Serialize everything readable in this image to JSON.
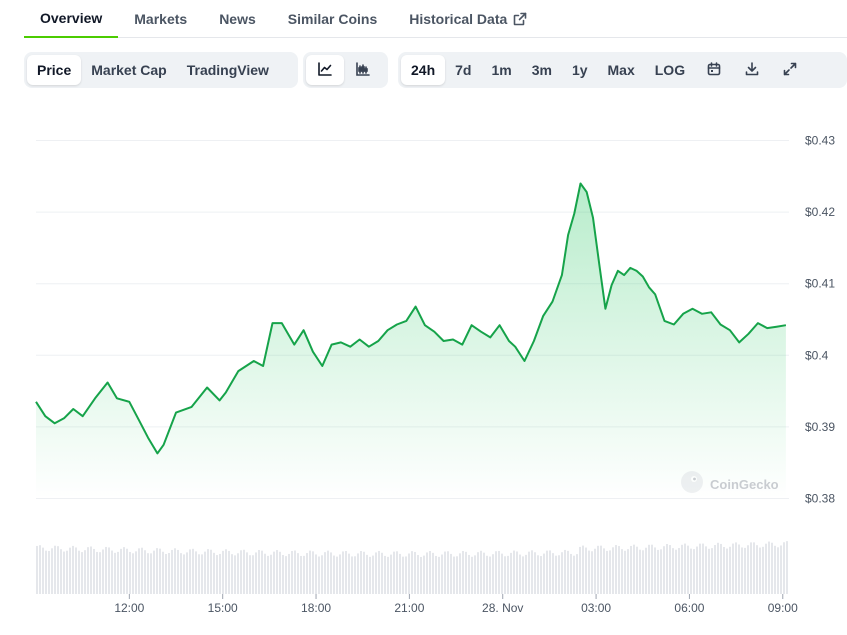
{
  "tabs": [
    "Overview",
    "Markets",
    "News",
    "Similar Coins",
    "Historical Data"
  ],
  "chart_type_toggle": [
    "Price",
    "Market Cap",
    "TradingView"
  ],
  "chart_style_icons": [
    "line-chart-icon",
    "candlestick-chart-icon"
  ],
  "range_buttons": [
    "24h",
    "7d",
    "1m",
    "3m",
    "1y",
    "Max",
    "LOG"
  ],
  "tool_icons": [
    "calendar-icon",
    "download-icon",
    "fullscreen-icon"
  ],
  "watermark": "CoinGecko",
  "colors": {
    "accent": "#4bcc00",
    "line": "#16a34a",
    "fill": "#22c55e"
  },
  "chart_data": {
    "type": "area",
    "y_axis": {
      "ticks": [
        "$0.43",
        "$0.42",
        "$0.41",
        "$0.4",
        "$0.39",
        "$0.38"
      ],
      "range": [
        0.38,
        0.43
      ]
    },
    "x_axis": {
      "ticks": [
        "12:00",
        "15:00",
        "18:00",
        "21:00",
        "28. Nov",
        "03:00",
        "06:00",
        "09:00"
      ],
      "range_hours": [
        9,
        33.2
      ]
    },
    "grid": true,
    "price_series": {
      "t": [
        9.0,
        9.3,
        9.6,
        9.9,
        10.2,
        10.5,
        10.9,
        11.3,
        11.6,
        12.0,
        12.3,
        12.6,
        12.9,
        13.1,
        13.5,
        14.0,
        14.5,
        14.9,
        15.1,
        15.5,
        16.0,
        16.3,
        16.6,
        16.9,
        17.3,
        17.6,
        17.9,
        18.2,
        18.5,
        18.8,
        19.1,
        19.4,
        19.7,
        20.0,
        20.3,
        20.6,
        20.9,
        21.2,
        21.5,
        21.8,
        22.1,
        22.4,
        22.7,
        23.0,
        23.3,
        23.6,
        23.9,
        24.2,
        24.4,
        24.7,
        25.0,
        25.3,
        25.6,
        25.9,
        26.1,
        26.3,
        26.5,
        26.7,
        26.9,
        27.1,
        27.3,
        27.5,
        27.7,
        27.9,
        28.1,
        28.3,
        28.5,
        28.7,
        28.9,
        29.2,
        29.5,
        29.8,
        30.1,
        30.4,
        30.7,
        31.0,
        31.3,
        31.6,
        31.9,
        32.2,
        32.5,
        32.8,
        33.1
      ],
      "v": [
        0.3935,
        0.3915,
        0.3905,
        0.3912,
        0.3925,
        0.3915,
        0.394,
        0.3962,
        0.394,
        0.3935,
        0.391,
        0.3885,
        0.3863,
        0.3875,
        0.392,
        0.3928,
        0.3955,
        0.3937,
        0.3948,
        0.3978,
        0.3992,
        0.3985,
        0.4045,
        0.4045,
        0.4015,
        0.4035,
        0.4005,
        0.3985,
        0.4015,
        0.4018,
        0.4012,
        0.4022,
        0.4012,
        0.402,
        0.4035,
        0.4043,
        0.4048,
        0.4068,
        0.4042,
        0.4033,
        0.402,
        0.4022,
        0.4015,
        0.4042,
        0.4033,
        0.4025,
        0.4042,
        0.402,
        0.4012,
        0.3992,
        0.402,
        0.4055,
        0.4075,
        0.4112,
        0.4168,
        0.4198,
        0.424,
        0.4228,
        0.4192,
        0.4128,
        0.4065,
        0.4098,
        0.4118,
        0.4112,
        0.4122,
        0.4118,
        0.411,
        0.4095,
        0.4085,
        0.4048,
        0.4043,
        0.4058,
        0.4065,
        0.4058,
        0.406,
        0.4043,
        0.4035,
        0.4018,
        0.403,
        0.4045,
        0.4038,
        0.404,
        0.4042
      ]
    }
  }
}
